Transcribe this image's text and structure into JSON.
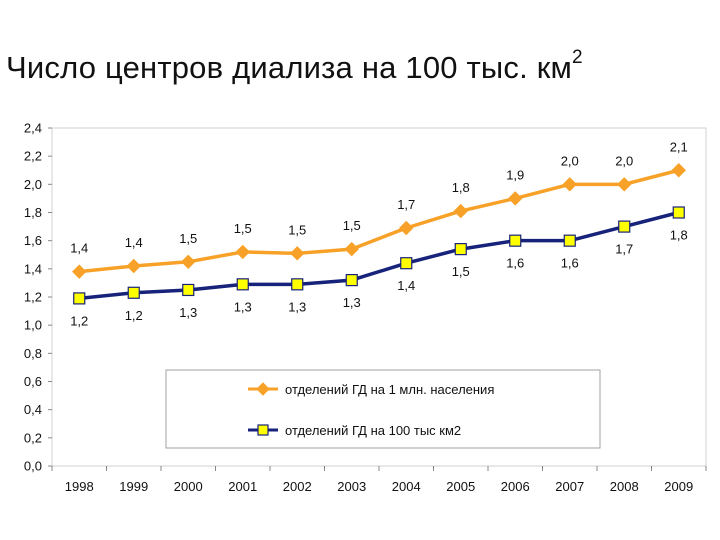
{
  "title": {
    "main": "Число центров диализа на 100 тыс. км",
    "superscript": "2"
  },
  "chart_data": {
    "type": "line",
    "x": [
      "1998",
      "1999",
      "2000",
      "2001",
      "2002",
      "2003",
      "2004",
      "2005",
      "2006",
      "2007",
      "2008",
      "2009"
    ],
    "ylim": [
      0.0,
      2.4
    ],
    "yticks": [
      "0,0",
      "0,2",
      "0,4",
      "0,6",
      "0,8",
      "1,0",
      "1,2",
      "1,4",
      "1,6",
      "1,8",
      "2,0",
      "2,2",
      "2,4"
    ],
    "grid": false,
    "legend": "center-bottom inside plot, boxed",
    "series": [
      {
        "name": "отделений ГД на 1 млн. населения",
        "color": "#F7A128",
        "marker": "diamond",
        "values": [
          1.38,
          1.42,
          1.45,
          1.52,
          1.51,
          1.54,
          1.69,
          1.81,
          1.9,
          2.0,
          2.0,
          2.1
        ],
        "labels": [
          "1,4",
          "1,4",
          "1,5",
          "1,5",
          "1,5",
          "1,5",
          "1,7",
          "1,8",
          "1,9",
          "2,0",
          "2,0",
          "2,1"
        ]
      },
      {
        "name": "отделений ГД на 100 тыс км2",
        "color": "#17227A",
        "marker_fill": "#FFFF00",
        "marker": "square",
        "values": [
          1.19,
          1.23,
          1.25,
          1.29,
          1.29,
          1.32,
          1.44,
          1.54,
          1.6,
          1.6,
          1.7,
          1.8
        ],
        "labels": [
          "1,2",
          "1,2",
          "1,3",
          "1,3",
          "1,3",
          "1,3",
          "1,4",
          "1,5",
          "1,6",
          "1,6",
          "1,7",
          "1,8"
        ]
      }
    ]
  }
}
